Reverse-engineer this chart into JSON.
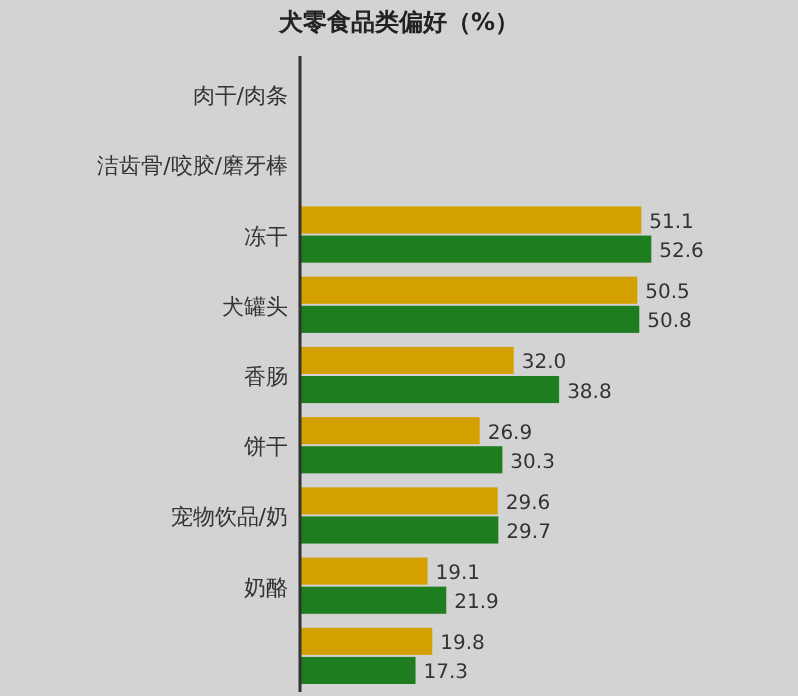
{
  "chart_data": {
    "type": "bar",
    "orientation": "horizontal",
    "title": "犬零食品类偏好（%）",
    "categories": [
      "肉干/肉条",
      "洁齿骨/咬胶/磨牙棒",
      "冻干",
      "犬罐头",
      "香肠",
      "饼干",
      "宠物饮品/奶",
      "奶酪",
      null
    ],
    "series": [
      {
        "color": "#d4a000",
        "values": [
          null,
          null,
          51.1,
          50.5,
          32.0,
          26.9,
          29.6,
          19.1,
          19.8
        ],
        "value_labels": [
          null,
          null,
          "51.1",
          "50.5",
          "32.0",
          "26.9",
          "29.6",
          "19.1",
          "19.8"
        ]
      },
      {
        "color": "#1e7d1e",
        "values": [
          null,
          null,
          52.6,
          50.8,
          38.8,
          30.3,
          29.7,
          21.9,
          17.3
        ],
        "value_labels": [
          null,
          null,
          "52.6",
          "50.8",
          "38.8",
          "30.3",
          "29.7",
          "21.9",
          "17.3"
        ]
      }
    ]
  }
}
